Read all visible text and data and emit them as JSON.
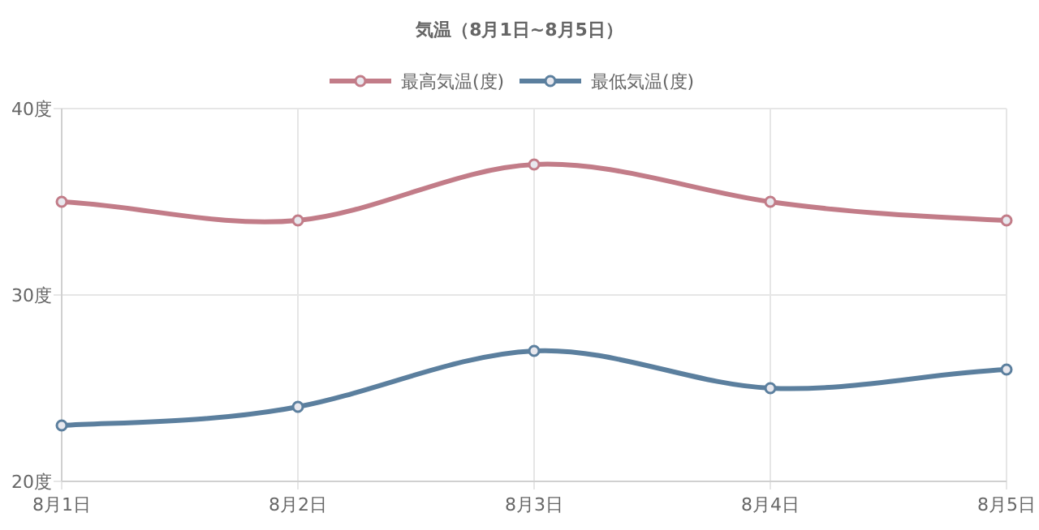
{
  "chart_data": {
    "type": "line",
    "title": "気温（8月1日~8月5日）",
    "categories": [
      "8月1日",
      "8月2日",
      "8月3日",
      "8月4日",
      "8月5日"
    ],
    "series": [
      {
        "name": "最高気温(度)",
        "color": "#c27c88",
        "values": [
          35,
          34,
          37,
          35,
          34
        ]
      },
      {
        "name": "最低気温(度)",
        "color": "#5b7f9e",
        "values": [
          23,
          24,
          27,
          25,
          26
        ]
      }
    ],
    "ylim": [
      20,
      40
    ],
    "yticks": [
      {
        "value": 20,
        "label": "20度"
      },
      {
        "value": 30,
        "label": "30度"
      },
      {
        "value": 40,
        "label": "40度"
      }
    ],
    "grid": true,
    "legend": "top",
    "marker": "circle",
    "line_style": "solid"
  }
}
